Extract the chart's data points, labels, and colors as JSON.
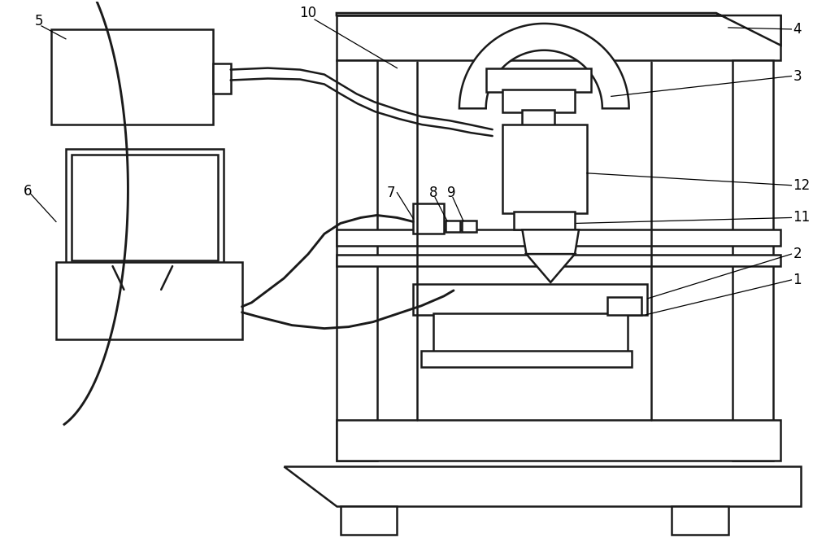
{
  "background_color": "#ffffff",
  "line_color": "#1a1a1a",
  "line_width": 1.8,
  "label_fontsize": 12,
  "fig_width": 10.0,
  "fig_height": 6.82
}
